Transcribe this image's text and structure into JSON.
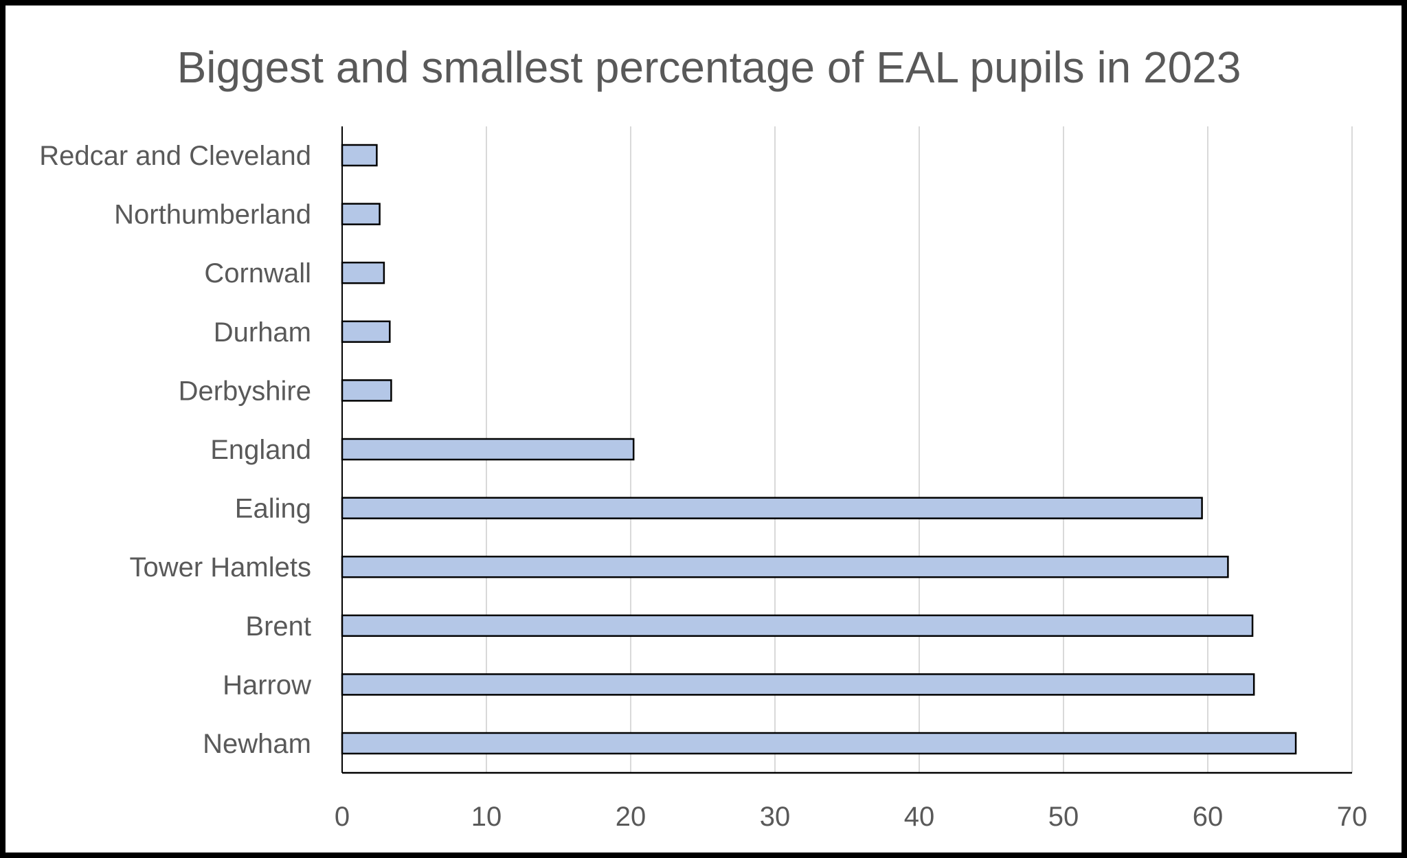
{
  "chart_data": {
    "type": "bar",
    "orientation": "horizontal",
    "title": "Biggest and smallest percentage of EAL pupils in 2023",
    "categories": [
      "Redcar and Cleveland",
      "Northumberland",
      "Cornwall",
      "Durham",
      "Derbyshire",
      "England",
      "Ealing",
      "Tower Hamlets",
      "Brent",
      "Harrow",
      "Newham"
    ],
    "values": [
      2.4,
      2.6,
      2.9,
      3.3,
      3.4,
      20.2,
      59.6,
      61.4,
      63.1,
      63.2,
      66.1
    ],
    "xlim": [
      0,
      70
    ],
    "x_ticks": [
      "0",
      "10",
      "20",
      "30",
      "40",
      "50",
      "60",
      "70"
    ],
    "xlabel": "",
    "ylabel": "",
    "grid": "vertical",
    "legend": "none",
    "colors": {
      "bar_fill": "#b4c7e7",
      "bar_stroke": "#000000",
      "grid": "#d9d9d9",
      "text": "#595959"
    }
  }
}
